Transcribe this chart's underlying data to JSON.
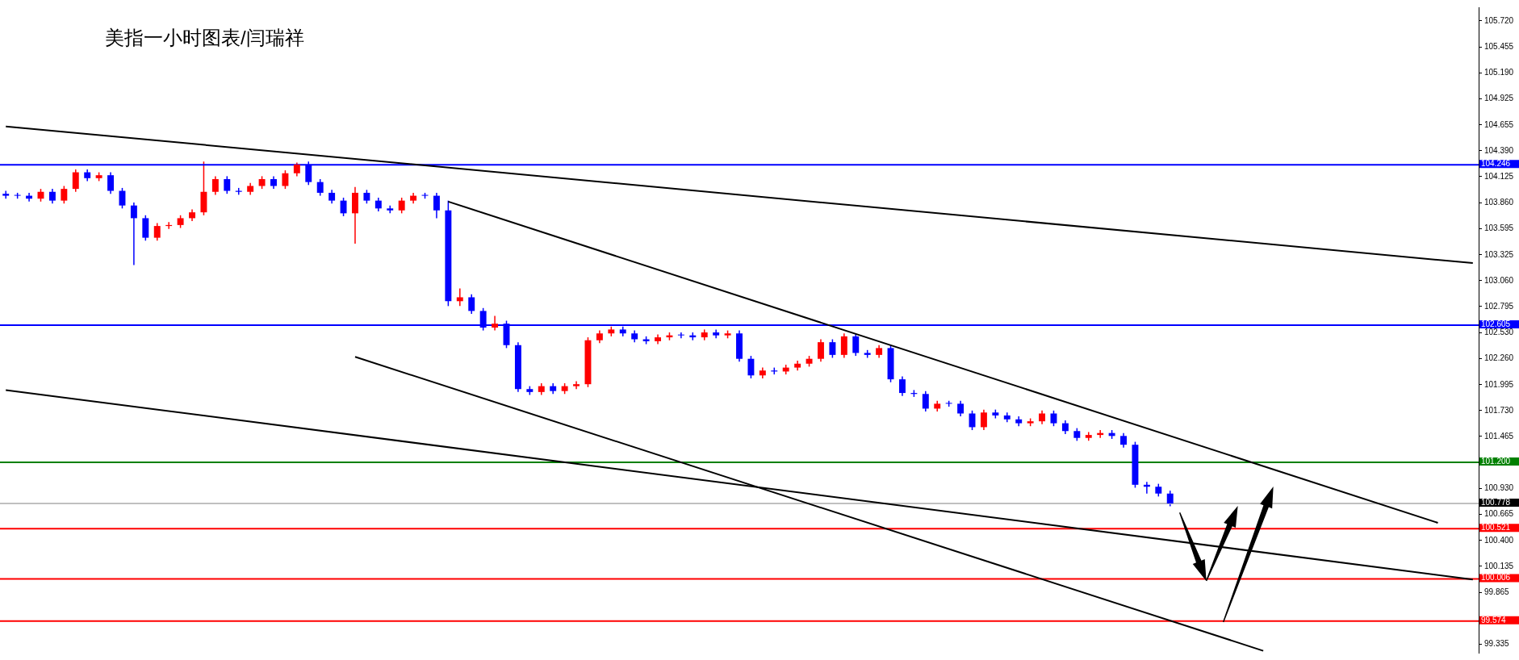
{
  "chart_data": {
    "type": "candlestick",
    "title": "美指一小时图表/闫瑞祥",
    "categories": [
      null,
      null,
      null,
      null,
      null,
      null,
      null,
      null,
      null,
      null,
      null,
      null,
      null,
      null,
      null,
      null,
      null,
      null,
      null,
      null,
      null,
      null,
      null,
      null,
      null,
      null,
      null,
      null,
      null,
      null,
      null,
      null,
      null,
      null,
      null,
      null,
      null,
      null,
      null,
      null,
      null,
      null,
      null,
      null,
      null,
      null,
      null,
      null,
      null,
      null,
      null,
      null,
      null,
      null,
      null,
      null,
      null,
      null,
      null,
      null,
      null,
      null,
      null,
      null,
      null,
      null,
      null,
      null,
      null,
      null,
      null,
      null,
      null,
      null,
      null,
      null,
      null,
      null,
      null,
      null,
      null,
      null,
      null,
      null,
      null,
      null,
      null,
      null,
      null,
      null,
      null,
      null,
      null,
      null,
      null,
      null,
      null,
      null,
      null,
      null,
      null,
      null,
      null,
      null,
      null,
      null,
      null,
      null,
      null,
      null,
      null,
      null,
      null,
      null,
      null,
      null,
      null,
      null,
      null,
      null,
      null,
      null,
      null,
      null,
      null,
      null,
      null
    ],
    "ohlc": [
      [
        103.95,
        103.98,
        103.9,
        103.93
      ],
      [
        103.93,
        103.96,
        103.9,
        103.93
      ],
      [
        103.93,
        103.96,
        103.87,
        103.9
      ],
      [
        103.9,
        104.0,
        103.87,
        103.97
      ],
      [
        103.97,
        104.0,
        103.85,
        103.88
      ],
      [
        103.88,
        104.03,
        103.85,
        104.0
      ],
      [
        104.0,
        104.2,
        103.97,
        104.17
      ],
      [
        104.17,
        104.2,
        104.08,
        104.11
      ],
      [
        104.11,
        104.17,
        104.08,
        104.14
      ],
      [
        104.14,
        104.17,
        103.95,
        103.98
      ],
      [
        103.98,
        104.01,
        103.8,
        103.83
      ],
      [
        103.83,
        103.86,
        103.22,
        103.7
      ],
      [
        103.7,
        103.73,
        103.47,
        103.5
      ],
      [
        103.5,
        103.65,
        103.47,
        103.62
      ],
      [
        103.62,
        103.66,
        103.59,
        103.63
      ],
      [
        103.63,
        103.73,
        103.6,
        103.7
      ],
      [
        103.7,
        103.79,
        103.67,
        103.76
      ],
      [
        103.76,
        104.28,
        103.73,
        103.97
      ],
      [
        103.97,
        104.13,
        103.94,
        104.1
      ],
      [
        104.1,
        104.13,
        103.95,
        103.98
      ],
      [
        103.98,
        104.01,
        103.94,
        103.97
      ],
      [
        103.97,
        104.06,
        103.94,
        104.03
      ],
      [
        104.03,
        104.13,
        104.0,
        104.1
      ],
      [
        104.1,
        104.13,
        104.0,
        104.03
      ],
      [
        104.03,
        104.19,
        104.0,
        104.16
      ],
      [
        104.16,
        104.27,
        104.13,
        104.25
      ],
      [
        104.25,
        104.28,
        104.04,
        104.07
      ],
      [
        104.07,
        104.1,
        103.93,
        103.96
      ],
      [
        103.96,
        103.99,
        103.85,
        103.88
      ],
      [
        103.88,
        103.91,
        103.72,
        103.75
      ],
      [
        103.75,
        104.02,
        103.44,
        103.96
      ],
      [
        103.96,
        103.99,
        103.85,
        103.88
      ],
      [
        103.88,
        103.91,
        103.77,
        103.8
      ],
      [
        103.8,
        103.83,
        103.75,
        103.78
      ],
      [
        103.78,
        103.91,
        103.75,
        103.88
      ],
      [
        103.88,
        103.96,
        103.85,
        103.93
      ],
      [
        103.93,
        103.96,
        103.9,
        103.93
      ],
      [
        103.93,
        103.96,
        103.7,
        103.78
      ],
      [
        103.78,
        103.88,
        102.8,
        102.85
      ],
      [
        102.85,
        102.98,
        102.8,
        102.89
      ],
      [
        102.89,
        102.92,
        102.72,
        102.75
      ],
      [
        102.75,
        102.78,
        102.55,
        102.58
      ],
      [
        102.58,
        102.7,
        102.55,
        102.62
      ],
      [
        102.62,
        102.65,
        102.37,
        102.4
      ],
      [
        102.4,
        102.43,
        101.92,
        101.95
      ],
      [
        101.95,
        101.98,
        101.89,
        101.92
      ],
      [
        101.92,
        102.01,
        101.89,
        101.98
      ],
      [
        101.98,
        102.01,
        101.9,
        101.93
      ],
      [
        101.93,
        102.01,
        101.9,
        101.98
      ],
      [
        101.98,
        102.03,
        101.95,
        102.0
      ],
      [
        102.0,
        102.48,
        101.97,
        102.45
      ],
      [
        102.45,
        102.55,
        102.42,
        102.52
      ],
      [
        102.52,
        102.59,
        102.49,
        102.56
      ],
      [
        102.56,
        102.59,
        102.49,
        102.52
      ],
      [
        102.52,
        102.55,
        102.43,
        102.46
      ],
      [
        102.46,
        102.49,
        102.41,
        102.44
      ],
      [
        102.44,
        102.51,
        102.41,
        102.48
      ],
      [
        102.48,
        102.53,
        102.45,
        102.5
      ],
      [
        102.5,
        102.53,
        102.47,
        102.5
      ],
      [
        102.5,
        102.53,
        102.45,
        102.48
      ],
      [
        102.48,
        102.56,
        102.45,
        102.53
      ],
      [
        102.53,
        102.56,
        102.47,
        102.5
      ],
      [
        102.5,
        102.55,
        102.47,
        102.52
      ],
      [
        102.52,
        102.55,
        102.23,
        102.26
      ],
      [
        102.26,
        102.29,
        102.06,
        102.09
      ],
      [
        102.09,
        102.17,
        102.06,
        102.14
      ],
      [
        102.14,
        102.17,
        102.1,
        102.13
      ],
      [
        102.13,
        102.2,
        102.1,
        102.17
      ],
      [
        102.17,
        102.24,
        102.14,
        102.21
      ],
      [
        102.21,
        102.29,
        102.18,
        102.26
      ],
      [
        102.26,
        102.46,
        102.23,
        102.43
      ],
      [
        102.43,
        102.46,
        102.27,
        102.3
      ],
      [
        102.3,
        102.52,
        102.27,
        102.49
      ],
      [
        102.49,
        102.52,
        102.29,
        102.32
      ],
      [
        102.32,
        102.35,
        102.27,
        102.3
      ],
      [
        102.3,
        102.4,
        102.27,
        102.37
      ],
      [
        102.37,
        102.4,
        102.02,
        102.05
      ],
      [
        102.05,
        102.08,
        101.88,
        101.91
      ],
      [
        101.91,
        101.94,
        101.87,
        101.9
      ],
      [
        101.9,
        101.93,
        101.72,
        101.75
      ],
      [
        101.75,
        101.83,
        101.72,
        101.8
      ],
      [
        101.8,
        101.83,
        101.77,
        101.8
      ],
      [
        101.8,
        101.83,
        101.67,
        101.7
      ],
      [
        101.7,
        101.73,
        101.53,
        101.56
      ],
      [
        101.56,
        101.74,
        101.53,
        101.71
      ],
      [
        101.71,
        101.74,
        101.65,
        101.68
      ],
      [
        101.68,
        101.71,
        101.61,
        101.64
      ],
      [
        101.64,
        101.67,
        101.57,
        101.6
      ],
      [
        101.6,
        101.65,
        101.57,
        101.62
      ],
      [
        101.62,
        101.73,
        101.59,
        101.7
      ],
      [
        101.7,
        101.73,
        101.57,
        101.6
      ],
      [
        101.6,
        101.63,
        101.49,
        101.52
      ],
      [
        101.52,
        101.55,
        101.42,
        101.45
      ],
      [
        101.45,
        101.51,
        101.42,
        101.48
      ],
      [
        101.48,
        101.53,
        101.45,
        101.5
      ],
      [
        101.5,
        101.53,
        101.44,
        101.47
      ],
      [
        101.47,
        101.5,
        101.35,
        101.38
      ],
      [
        101.38,
        101.41,
        100.94,
        100.97
      ],
      [
        100.97,
        101.0,
        100.88,
        100.95
      ],
      [
        100.95,
        100.98,
        100.85,
        100.88
      ],
      [
        100.88,
        100.91,
        100.75,
        100.778
      ],
      null,
      null,
      null,
      null,
      null,
      null,
      null,
      null,
      null,
      null,
      null,
      null,
      null,
      null,
      null,
      null,
      null,
      null,
      null,
      null,
      null,
      null,
      null,
      null,
      null,
      null
    ],
    "colors": [
      "#0000ff",
      "#0000ff",
      "#0000ff",
      "#ff0000",
      "#0000ff",
      "#ff0000",
      "#ff0000",
      "#0000ff",
      "#ff0000",
      "#0000ff",
      "#0000ff",
      "#0000ff",
      "#0000ff",
      "#ff0000",
      "#ff0000",
      "#ff0000",
      "#ff0000",
      "#ff0000",
      "#ff0000",
      "#0000ff",
      "#0000ff",
      "#ff0000",
      "#ff0000",
      "#0000ff",
      "#ff0000",
      "#ff0000",
      "#0000ff",
      "#0000ff",
      "#0000ff",
      "#0000ff",
      "#ff0000",
      "#0000ff",
      "#0000ff",
      "#0000ff",
      "#ff0000",
      "#ff0000",
      "#0000ff",
      "#0000ff",
      "#0000ff",
      "#ff0000",
      "#0000ff",
      "#0000ff",
      "#ff0000",
      "#0000ff",
      "#0000ff",
      "#0000ff",
      "#ff0000",
      "#0000ff",
      "#ff0000",
      "#ff0000",
      "#ff0000",
      "#ff0000",
      "#ff0000",
      "#0000ff",
      "#0000ff",
      "#0000ff",
      "#ff0000",
      "#ff0000",
      "#0000ff",
      "#0000ff",
      "#ff0000",
      "#0000ff",
      "#ff0000",
      "#0000ff",
      "#0000ff",
      "#ff0000",
      "#0000ff",
      "#ff0000",
      "#ff0000",
      "#ff0000",
      "#ff0000",
      "#0000ff",
      "#ff0000",
      "#0000ff",
      "#0000ff",
      "#ff0000",
      "#0000ff",
      "#0000ff",
      "#0000ff",
      "#0000ff",
      "#ff0000",
      "#0000ff",
      "#0000ff",
      "#0000ff",
      "#ff0000",
      "#0000ff",
      "#0000ff",
      "#0000ff",
      "#ff0000",
      "#ff0000",
      "#0000ff",
      "#0000ff",
      "#0000ff",
      "#ff0000",
      "#ff0000",
      "#0000ff",
      "#0000ff",
      "#0000ff",
      "#0000ff",
      "#0000ff",
      "#0000ff",
      null,
      null,
      null,
      null,
      null,
      null,
      null,
      null,
      null,
      null,
      null,
      null,
      null,
      null,
      null,
      null,
      null,
      null,
      null,
      null,
      null,
      null,
      null,
      null,
      null,
      null
    ],
    "series": [
      {
        "type": "line",
        "color": "#000000",
        "values": [
          104.64,
          null,
          null,
          null,
          null,
          null,
          null,
          null,
          null,
          null,
          null,
          null,
          null,
          null,
          null,
          null,
          null,
          null,
          null,
          null,
          null,
          null,
          null,
          null,
          null,
          null,
          null,
          null,
          null,
          null,
          null,
          null,
          null,
          null,
          null,
          null,
          null,
          null,
          null,
          null,
          null,
          null,
          null,
          null,
          null,
          null,
          null,
          null,
          null,
          null,
          null,
          null,
          null,
          null,
          null,
          null,
          null,
          null,
          null,
          null,
          null,
          null,
          null,
          null,
          null,
          null,
          null,
          null,
          null,
          null,
          null,
          null,
          null,
          null,
          null,
          null,
          null,
          null,
          null,
          null,
          null,
          null,
          null,
          null,
          null,
          null,
          null,
          null,
          null,
          null,
          null,
          null,
          null,
          null,
          null,
          null,
          null,
          null,
          null,
          null,
          null,
          null,
          null,
          null,
          null,
          null,
          null,
          null,
          null,
          null,
          null,
          null,
          null,
          null,
          null,
          null,
          null,
          null,
          null,
          null,
          null,
          null,
          null,
          null,
          null,
          null,
          103.24
        ]
      },
      {
        "type": "line",
        "color": "#000000",
        "values": [
          null,
          null,
          null,
          null,
          null,
          null,
          null,
          null,
          null,
          null,
          null,
          null,
          null,
          null,
          null,
          null,
          null,
          null,
          null,
          null,
          null,
          null,
          null,
          null,
          null,
          null,
          null,
          null,
          null,
          null,
          null,
          null,
          null,
          null,
          null,
          null,
          null,
          null,
          103.87,
          null,
          null,
          null,
          null,
          null,
          null,
          null,
          null,
          null,
          null,
          null,
          null,
          null,
          null,
          null,
          null,
          null,
          null,
          null,
          null,
          null,
          null,
          null,
          null,
          null,
          null,
          null,
          null,
          null,
          null,
          null,
          null,
          null,
          null,
          null,
          null,
          null,
          null,
          null,
          null,
          null,
          null,
          null,
          null,
          null,
          null,
          null,
          null,
          null,
          null,
          null,
          null,
          null,
          null,
          null,
          null,
          null,
          null,
          null,
          null,
          null,
          null,
          null,
          null,
          null,
          null,
          null,
          null,
          null,
          null,
          null,
          null,
          null,
          null,
          null,
          null,
          null,
          null,
          null,
          null,
          null,
          null,
          null,
          null,
          100.58,
          null,
          null,
          null
        ]
      },
      {
        "type": "line",
        "color": "#000000",
        "values": [
          null,
          null,
          null,
          null,
          null,
          null,
          null,
          null,
          null,
          null,
          null,
          null,
          null,
          null,
          null,
          null,
          null,
          null,
          null,
          null,
          null,
          null,
          null,
          null,
          null,
          null,
          null,
          null,
          null,
          null,
          102.28,
          null,
          null,
          null,
          null,
          null,
          null,
          null,
          null,
          null,
          null,
          null,
          null,
          null,
          null,
          null,
          null,
          null,
          null,
          null,
          null,
          null,
          null,
          null,
          null,
          null,
          null,
          null,
          null,
          null,
          null,
          null,
          null,
          null,
          null,
          null,
          null,
          null,
          null,
          null,
          null,
          null,
          null,
          null,
          null,
          null,
          null,
          null,
          null,
          null,
          null,
          null,
          null,
          null,
          null,
          null,
          null,
          null,
          null,
          null,
          null,
          null,
          null,
          null,
          null,
          null,
          null,
          null,
          null,
          null,
          null,
          null,
          null,
          null,
          null,
          null,
          null,
          null,
          99.27,
          null,
          null,
          null,
          null,
          null,
          null,
          null,
          null,
          null,
          null,
          null,
          null,
          null,
          null,
          null,
          null,
          null,
          null
        ]
      },
      {
        "type": "line",
        "color": "#000000",
        "values": [
          101.94,
          null,
          null,
          null,
          null,
          null,
          null,
          null,
          null,
          null,
          null,
          null,
          null,
          null,
          null,
          null,
          null,
          null,
          null,
          null,
          null,
          null,
          null,
          null,
          null,
          null,
          null,
          null,
          null,
          null,
          null,
          null,
          null,
          null,
          null,
          null,
          null,
          null,
          null,
          null,
          null,
          null,
          null,
          null,
          null,
          null,
          null,
          null,
          null,
          null,
          null,
          null,
          null,
          null,
          null,
          null,
          null,
          null,
          null,
          null,
          null,
          null,
          null,
          null,
          null,
          null,
          null,
          null,
          null,
          null,
          null,
          null,
          null,
          null,
          null,
          null,
          null,
          null,
          null,
          null,
          null,
          null,
          null,
          null,
          null,
          null,
          null,
          null,
          null,
          null,
          null,
          null,
          null,
          null,
          null,
          null,
          null,
          null,
          null,
          null,
          null,
          null,
          null,
          null,
          null,
          null,
          null,
          null,
          null,
          null,
          null,
          null,
          null,
          null,
          null,
          null,
          null,
          null,
          null,
          null,
          null,
          null,
          null,
          null,
          null,
          null,
          100.0
        ]
      }
    ],
    "ylim": [
      99.25,
      105.86
    ],
    "yticks": [
      {
        "value": 105.72,
        "label": "105.720"
      },
      {
        "value": 105.455,
        "label": "105.455"
      },
      {
        "value": 105.19,
        "label": "105.190"
      },
      {
        "value": 104.925,
        "label": "104.925"
      },
      {
        "value": 104.655,
        "label": "104.655"
      },
      {
        "value": 104.39,
        "label": "104.390"
      },
      {
        "value": 104.125,
        "label": "104.125"
      },
      {
        "value": 103.86,
        "label": "103.860"
      },
      {
        "value": 103.595,
        "label": "103.595"
      },
      {
        "value": 103.325,
        "label": "103.325"
      },
      {
        "value": 103.06,
        "label": "103.060"
      },
      {
        "value": 102.795,
        "label": "102.795"
      },
      {
        "value": 102.53,
        "label": "102.530"
      },
      {
        "value": 102.26,
        "label": "102.260"
      },
      {
        "value": 101.995,
        "label": "101.995"
      },
      {
        "value": 101.73,
        "label": "101.730"
      },
      {
        "value": 101.465,
        "label": "101.465"
      },
      {
        "value": 100.93,
        "label": "100.930"
      },
      {
        "value": 100.665,
        "label": "100.665"
      },
      {
        "value": 100.4,
        "label": "100.400"
      },
      {
        "value": 100.135,
        "label": "100.135"
      },
      {
        "value": 99.865,
        "label": "99.865"
      },
      {
        "value": 99.335,
        "label": "99.335"
      }
    ],
    "ref_lines": [
      {
        "axis": "y",
        "value": 104.246,
        "label": "104.246",
        "color": "#0000ff"
      },
      {
        "axis": "y",
        "value": 102.605,
        "label": "102.605",
        "color": "#0000ff"
      },
      {
        "axis": "y",
        "value": 101.2,
        "label": "101.200",
        "color": "#008000"
      },
      {
        "axis": "y",
        "value": 100.778,
        "label": "100.778",
        "color": "#c0c0c0"
      },
      {
        "axis": "y",
        "value": 100.521,
        "label": "100.521",
        "color": "#ff0000"
      },
      {
        "axis": "y",
        "value": 100.006,
        "label": "100.006",
        "color": "#ff0000"
      },
      {
        "axis": "y",
        "value": 99.574,
        "label": "99.574",
        "color": "#ff0000"
      }
    ],
    "tick_labels": "y"
  }
}
